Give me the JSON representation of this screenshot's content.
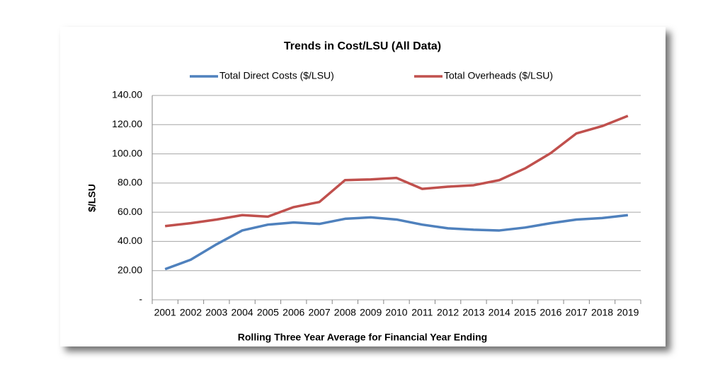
{
  "chart_data": {
    "type": "line",
    "title": "Trends in Cost/LSU (All Data)",
    "x_label": "Rolling Three Year Average for Financial Year Ending",
    "y_label": "$/LSU",
    "categories": [
      "2001",
      "2002",
      "2003",
      "2004",
      "2005",
      "2006",
      "2007",
      "2008",
      "2009",
      "2010",
      "2011",
      "2012",
      "2013",
      "2014",
      "2015",
      "2016",
      "2017",
      "2018",
      "2019"
    ],
    "series": [
      {
        "name": "Total Direct Costs ($/LSU)",
        "color": "#4f81bd",
        "values": [
          21,
          27.5,
          38,
          47.5,
          51.5,
          53,
          52,
          55.5,
          56.5,
          55,
          51.5,
          49,
          48,
          47.5,
          49.5,
          52.5,
          55,
          56,
          58
        ]
      },
      {
        "name": "Total Overheads ($/LSU)",
        "color": "#c0504d",
        "values": [
          50.5,
          52.5,
          55,
          58,
          57,
          63.5,
          67,
          82,
          82.5,
          83.5,
          76,
          77.5,
          78.5,
          82,
          90,
          100.5,
          114,
          119,
          126
        ]
      }
    ],
    "ylim": [
      0,
      140
    ],
    "yticks": [
      {
        "value": 0,
        "label": "-"
      },
      {
        "value": 20,
        "label": "20.00"
      },
      {
        "value": 40,
        "label": "40.00"
      },
      {
        "value": 60,
        "label": "60.00"
      },
      {
        "value": 80,
        "label": "80.00"
      },
      {
        "value": 100,
        "label": "100.00"
      },
      {
        "value": 120,
        "label": "120.00"
      },
      {
        "value": 140,
        "label": "140.00"
      }
    ],
    "grid": true,
    "legend": "top"
  }
}
